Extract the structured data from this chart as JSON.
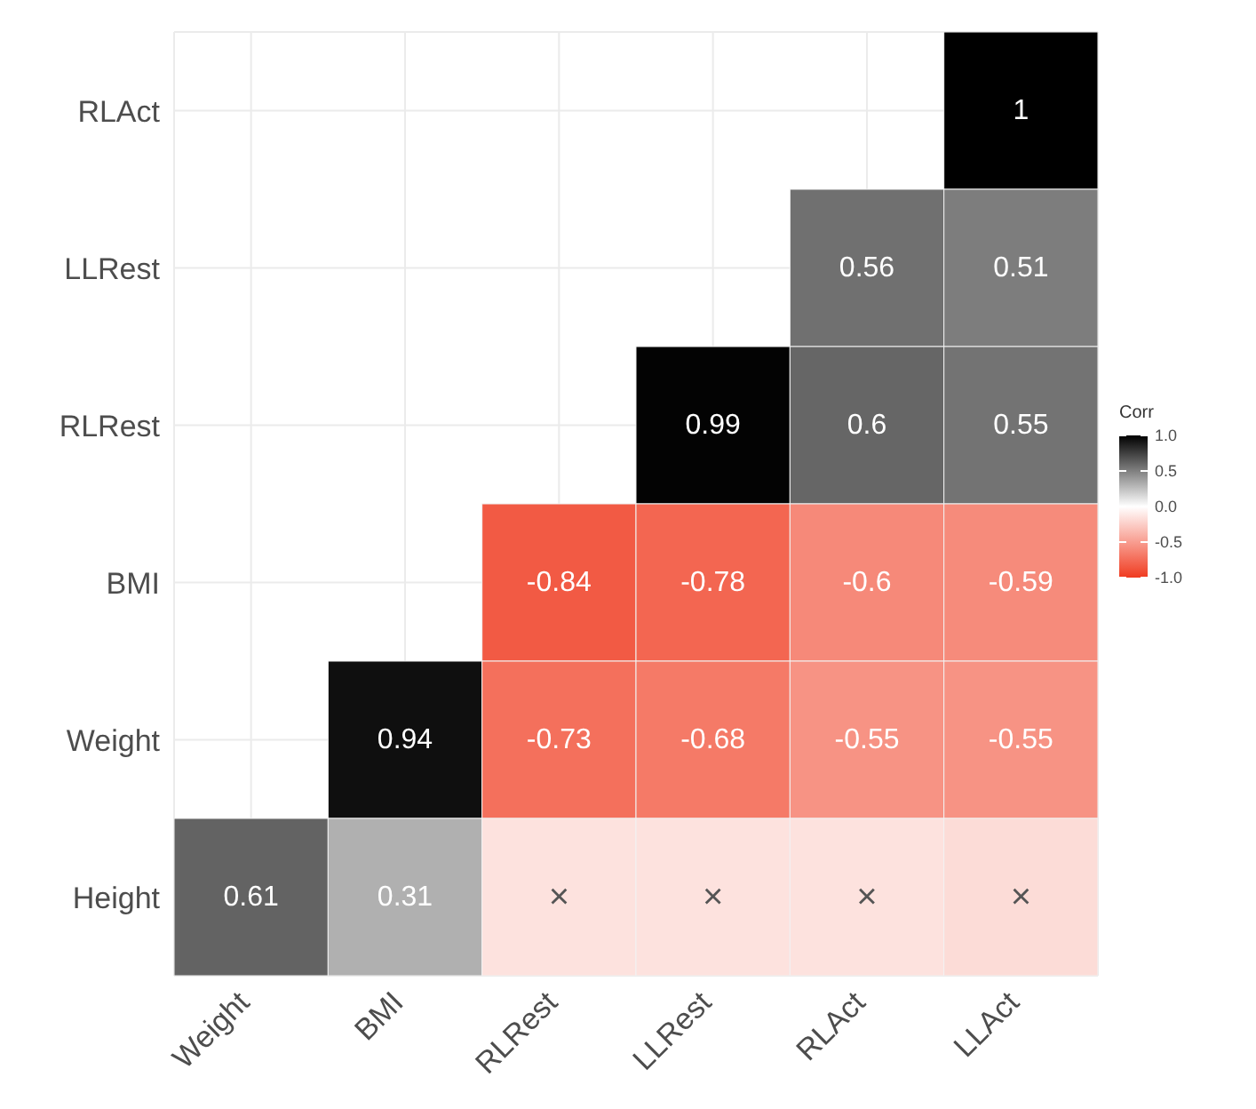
{
  "chart_data": {
    "type": "heatmap",
    "categories": [
      "Weight",
      "BMI",
      "RLRest",
      "LLRest",
      "RLAct",
      "LLAct"
    ],
    "y_categories": [
      "RLAct",
      "LLRest",
      "RLRest",
      "BMI",
      "Weight",
      "Height"
    ],
    "cells": [
      [
        null,
        null,
        null,
        null,
        null,
        1
      ],
      [
        null,
        null,
        null,
        null,
        0.56,
        0.51
      ],
      [
        null,
        null,
        null,
        0.99,
        0.6,
        0.55
      ],
      [
        null,
        null,
        -0.84,
        -0.78,
        -0.6,
        -0.59
      ],
      [
        null,
        0.94,
        -0.73,
        -0.68,
        -0.55,
        -0.55
      ],
      [
        0.61,
        0.31,
        -0.15,
        -0.15,
        -0.15,
        -0.18
      ]
    ],
    "cell_labels": [
      [
        null,
        null,
        null,
        null,
        null,
        "1"
      ],
      [
        null,
        null,
        null,
        null,
        "0.56",
        "0.51"
      ],
      [
        null,
        null,
        null,
        "0.99",
        "0.6",
        "0.55"
      ],
      [
        null,
        null,
        "-0.84",
        "-0.78",
        "-0.6",
        "-0.59"
      ],
      [
        null,
        "0.94",
        "-0.73",
        "-0.68",
        "-0.55",
        "-0.55"
      ],
      [
        "0.61",
        "0.31",
        "×",
        "×",
        "×",
        "×"
      ]
    ],
    "clabel": "Corr",
    "clim": [
      -1,
      1
    ],
    "cticks": [
      {
        "value": 1,
        "label": "1.0"
      },
      {
        "value": 0.5,
        "label": "0.5"
      },
      {
        "value": 0,
        "label": "0.0"
      },
      {
        "value": -0.5,
        "label": "-0.5"
      },
      {
        "value": -1,
        "label": "-1.0"
      }
    ],
    "grid": true
  }
}
